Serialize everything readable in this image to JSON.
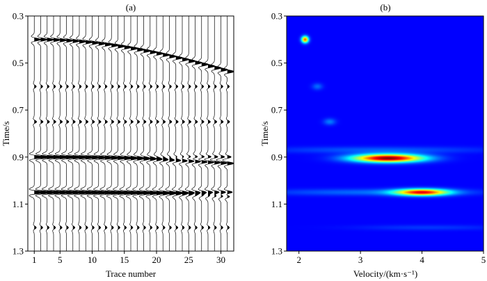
{
  "chart_data": [
    {
      "type": "wiggle",
      "panel_label": "(a)",
      "xlabel": "Trace number",
      "ylabel": "Time/s",
      "xticks": [
        1,
        5,
        10,
        15,
        20,
        25,
        30
      ],
      "xlim": [
        0,
        32
      ],
      "yticks": [
        0.3,
        0.5,
        0.7,
        0.9,
        1.1,
        1.3
      ],
      "ylim": [
        0.3,
        1.3
      ],
      "traces": [
        1,
        2,
        3,
        4,
        5,
        6,
        7,
        8,
        9,
        10,
        11,
        12,
        13,
        14,
        15,
        16,
        17,
        18,
        19,
        20,
        21,
        22,
        23,
        24,
        25,
        26,
        27,
        28,
        29,
        30,
        31
      ],
      "events": [
        {
          "type": "hyperbola",
          "t0": 0.4,
          "velocity_kms": 2.1,
          "strength": 1.0
        },
        {
          "type": "flat",
          "t0": 0.6,
          "strength": 0.3
        },
        {
          "type": "flat",
          "t0": 0.75,
          "strength": 0.35
        },
        {
          "type": "hyperbola",
          "t0": 0.9,
          "velocity_kms": 3.4,
          "strength": 1.0
        },
        {
          "type": "flat",
          "t0": 0.9,
          "strength": 0.6
        },
        {
          "type": "flat",
          "t0": 1.05,
          "strength": 1.0
        },
        {
          "type": "hyperbola",
          "t0": 1.05,
          "velocity_kms": 4.0,
          "strength": 0.7
        },
        {
          "type": "flat",
          "t0": 1.2,
          "strength": 0.3
        }
      ]
    },
    {
      "type": "heatmap",
      "panel_label": "(b)",
      "xlabel": "Velocity/(km·s⁻¹)",
      "ylabel": "Time/s",
      "xticks": [
        2,
        3,
        4,
        5
      ],
      "xlim": [
        1.8,
        5.0
      ],
      "yticks": [
        0.3,
        0.5,
        0.7,
        0.9,
        1.1,
        1.3
      ],
      "ylim": [
        0.3,
        1.3
      ],
      "colormap": "jet",
      "peaks": [
        {
          "t": 0.4,
          "v": 2.1,
          "amp": 0.75,
          "sv": 0.04,
          "st": 0.01
        },
        {
          "t": 0.6,
          "v": 2.3,
          "amp": 0.12,
          "sv": 0.06,
          "st": 0.01
        },
        {
          "t": 0.75,
          "v": 2.5,
          "amp": 0.14,
          "sv": 0.07,
          "st": 0.01
        },
        {
          "t": 0.905,
          "v": 3.45,
          "amp": 1.0,
          "sv": 0.4,
          "st": 0.012
        },
        {
          "t": 0.87,
          "v": 3.3,
          "amp": 0.1,
          "sv": 1.2,
          "st": 0.01
        },
        {
          "t": 1.05,
          "v": 4.0,
          "amp": 0.8,
          "sv": 0.3,
          "st": 0.01
        },
        {
          "t": 1.05,
          "v": 3.2,
          "amp": 0.12,
          "sv": 1.2,
          "st": 0.01
        },
        {
          "t": 1.2,
          "v": 4.1,
          "amp": 0.06,
          "sv": 0.8,
          "st": 0.008
        }
      ]
    }
  ]
}
